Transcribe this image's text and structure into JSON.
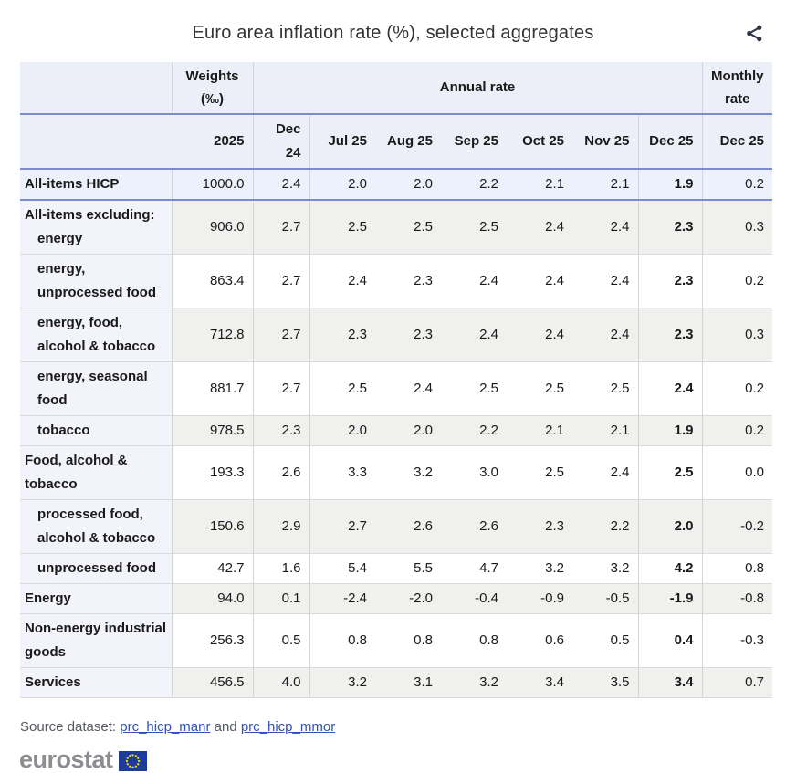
{
  "title": "Euro area inflation rate (%), selected aggregates",
  "header": {
    "weights_label": "Weights",
    "weights_unit": "(‰)",
    "annual_rate_label": "Annual rate",
    "monthly_rate_line1": "Monthly",
    "monthly_rate_line2": "rate"
  },
  "chart_data": {
    "type": "table",
    "title": "Euro area inflation rate (%), selected aggregates",
    "columns": [
      "2025",
      "Dec 24",
      "Jul 25",
      "Aug 25",
      "Sep 25",
      "Oct 25",
      "Nov 25",
      "Dec 25",
      "Dec 25"
    ],
    "column_notes": "first column = HICP weights (per mille) for 2025; next seven columns = annual rate; last column = monthly rate",
    "rows": [
      {
        "label_lines": [
          {
            "text": "All-items HICP",
            "indent": 0
          }
        ],
        "weight": "1000.0",
        "values": [
          "2.4",
          "2.0",
          "2.0",
          "2.2",
          "2.1",
          "2.1",
          "1.9",
          "0.2"
        ],
        "highlight": true
      },
      {
        "label_lines": [
          {
            "text": "All-items excluding:",
            "indent": 0
          },
          {
            "text": "energy",
            "indent": 1
          }
        ],
        "weight": "906.0",
        "values": [
          "2.7",
          "2.5",
          "2.5",
          "2.5",
          "2.4",
          "2.4",
          "2.3",
          "0.3"
        ]
      },
      {
        "label_lines": [
          {
            "text": "energy, unprocessed food",
            "indent": 1
          }
        ],
        "weight": "863.4",
        "values": [
          "2.7",
          "2.4",
          "2.3",
          "2.4",
          "2.4",
          "2.4",
          "2.3",
          "0.2"
        ]
      },
      {
        "label_lines": [
          {
            "text": "energy, food, alcohol & tobacco",
            "indent": 1
          }
        ],
        "weight": "712.8",
        "values": [
          "2.7",
          "2.3",
          "2.3",
          "2.4",
          "2.4",
          "2.4",
          "2.3",
          "0.3"
        ]
      },
      {
        "label_lines": [
          {
            "text": "energy, seasonal food",
            "indent": 1
          }
        ],
        "weight": "881.7",
        "values": [
          "2.7",
          "2.5",
          "2.4",
          "2.5",
          "2.5",
          "2.5",
          "2.4",
          "0.2"
        ]
      },
      {
        "label_lines": [
          {
            "text": "tobacco",
            "indent": 1
          }
        ],
        "weight": "978.5",
        "values": [
          "2.3",
          "2.0",
          "2.0",
          "2.2",
          "2.1",
          "2.1",
          "1.9",
          "0.2"
        ]
      },
      {
        "label_lines": [
          {
            "text": "Food, alcohol & tobacco",
            "indent": 0
          }
        ],
        "weight": "193.3",
        "values": [
          "2.6",
          "3.3",
          "3.2",
          "3.0",
          "2.5",
          "2.4",
          "2.5",
          "0.0"
        ]
      },
      {
        "label_lines": [
          {
            "text": "processed food, alcohol & tobacco",
            "indent": 1
          }
        ],
        "weight": "150.6",
        "values": [
          "2.9",
          "2.7",
          "2.6",
          "2.6",
          "2.3",
          "2.2",
          "2.0",
          "-0.2"
        ]
      },
      {
        "label_lines": [
          {
            "text": "unprocessed food",
            "indent": 1
          }
        ],
        "weight": "42.7",
        "values": [
          "1.6",
          "5.4",
          "5.5",
          "4.7",
          "3.2",
          "3.2",
          "4.2",
          "0.8"
        ]
      },
      {
        "label_lines": [
          {
            "text": "Energy",
            "indent": 0
          }
        ],
        "weight": "94.0",
        "values": [
          "0.1",
          "-2.4",
          "-2.0",
          "-0.4",
          "-0.9",
          "-0.5",
          "-1.9",
          "-0.8"
        ]
      },
      {
        "label_lines": [
          {
            "text": "Non-energy industrial goods",
            "indent": 0
          }
        ],
        "weight": "256.3",
        "values": [
          "0.5",
          "0.8",
          "0.8",
          "0.8",
          "0.6",
          "0.5",
          "0.4",
          "-0.3"
        ]
      },
      {
        "label_lines": [
          {
            "text": "Services",
            "indent": 0
          }
        ],
        "weight": "456.5",
        "values": [
          "4.0",
          "3.2",
          "3.1",
          "3.2",
          "3.4",
          "3.5",
          "3.4",
          "0.7"
        ]
      }
    ]
  },
  "footer": {
    "source_prefix": "Source dataset: ",
    "link1": "prc_hicp_manr",
    "conjunction": " and ",
    "link2": "prc_hicp_mmor",
    "logo_text": "eurostat"
  },
  "icons": {
    "share": "share-icon",
    "eu_flag": "eu-flag-icon"
  },
  "colors": {
    "accent_blue_line": "#7c8cca",
    "header_bg": "#edeff8",
    "label_col_bg": "#f2f3fb",
    "highlight_row_bg": "#edf1fb",
    "gray_row_bg": "#f0f1ef",
    "link_blue": "#2d52bd",
    "flag_blue": "#1d3b99",
    "star_yellow": "#ffd617",
    "logo_gray": "#8b8d90",
    "share_icon_dark": "#2e3545"
  }
}
